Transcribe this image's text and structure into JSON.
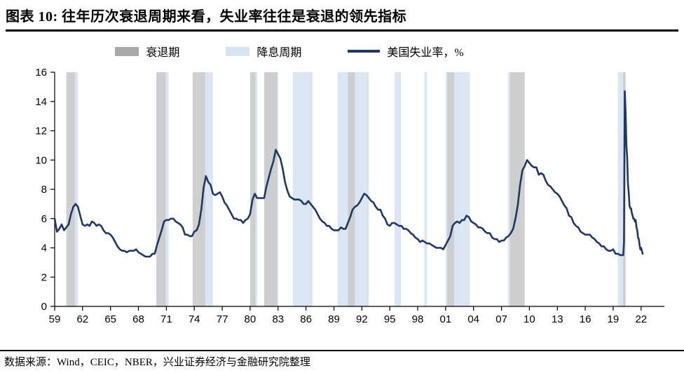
{
  "header": {
    "title": "图表 10: 往年历次衰退周期来看，失业率往往是衰退的领先指标"
  },
  "legend": [
    {
      "label": "衰退期"
    },
    {
      "label": "降息周期"
    },
    {
      "label": "美国失业率，%"
    }
  ],
  "footer": {
    "source": "数据来源：Wind，CEIC，NBER，兴业证券经济与金融研究院整理"
  },
  "colors": {
    "line": "#1f3864",
    "recession_band": "#cbcbcb",
    "cut_band": "#dce6f2",
    "legend_recession": "#a9a9a9",
    "legend_cut": "#d9e2f0",
    "axis": "#000000",
    "text": "#000000"
  },
  "chart_data": {
    "type": "line",
    "title": "图表 10: 往年历次衰退周期来看，失业率往往是衰退的领先指标",
    "grid": false,
    "x_axis": {
      "range": [
        1959,
        2024.5
      ],
      "ticks": [
        1959,
        1962,
        1965,
        1968,
        1971,
        1974,
        1977,
        1980,
        1983,
        1986,
        1989,
        1992,
        1995,
        1998,
        2001,
        2004,
        2007,
        2010,
        2013,
        2016,
        2019,
        2022
      ],
      "tick_labels": [
        "59",
        "62",
        "65",
        "68",
        "71",
        "74",
        "77",
        "80",
        "83",
        "86",
        "89",
        "92",
        "95",
        "98",
        "01",
        "04",
        "07",
        "10",
        "13",
        "16",
        "19",
        "22"
      ]
    },
    "y_axis": {
      "range": [
        0,
        16
      ],
      "ticks": [
        0,
        2,
        4,
        6,
        8,
        10,
        12,
        14,
        16
      ]
    },
    "recessions": [
      [
        1960.25,
        1961.17
      ],
      [
        1969.92,
        1970.92
      ],
      [
        1973.83,
        1975.17
      ],
      [
        1980.0,
        1980.58
      ],
      [
        1981.5,
        1982.92
      ],
      [
        1990.5,
        1991.25
      ],
      [
        2001.17,
        2001.92
      ],
      [
        2007.92,
        2009.5
      ],
      [
        2020.08,
        2020.33
      ]
    ],
    "rate_cut_cycles": [
      [
        1960.5,
        1961.5
      ],
      [
        1970.0,
        1971.25
      ],
      [
        1974.5,
        1976.0
      ],
      [
        1980.3,
        1980.75
      ],
      [
        1981.6,
        1983.0
      ],
      [
        1984.6,
        1986.7
      ],
      [
        1989.4,
        1992.75
      ],
      [
        1995.5,
        1996.2
      ],
      [
        1998.7,
        1999.0
      ],
      [
        2001.0,
        2003.6
      ],
      [
        2007.7,
        2008.95
      ],
      [
        2019.5,
        2020.3
      ]
    ],
    "series": [
      {
        "name": "美国失业率，%",
        "unit": "%",
        "frequency": "quarterly 1959-2019, monthly 2020-2022",
        "quarterly_start": 1959,
        "quarterly_values": [
          [
            6.0,
            5.1,
            5.3,
            5.6
          ],
          [
            5.2,
            5.4,
            5.6,
            6.3
          ],
          [
            6.8,
            7.0,
            6.8,
            6.2
          ],
          [
            5.6,
            5.5,
            5.6,
            5.5
          ],
          [
            5.8,
            5.7,
            5.5,
            5.6
          ],
          [
            5.5,
            5.2,
            5.0,
            5.0
          ],
          [
            4.9,
            4.7,
            4.4,
            4.1
          ],
          [
            3.9,
            3.8,
            3.8,
            3.7
          ],
          [
            3.8,
            3.8,
            3.8,
            3.9
          ],
          [
            3.7,
            3.6,
            3.5,
            3.4
          ],
          [
            3.4,
            3.4,
            3.6,
            3.6
          ],
          [
            4.2,
            4.7,
            5.2,
            5.8
          ],
          [
            5.9,
            5.9,
            6.0,
            6.0
          ],
          [
            5.8,
            5.7,
            5.6,
            5.4
          ],
          [
            4.9,
            4.9,
            4.8,
            4.8
          ],
          [
            5.1,
            5.2,
            5.6,
            6.6
          ],
          [
            8.1,
            8.9,
            8.5,
            8.3
          ],
          [
            7.7,
            7.6,
            7.7,
            7.8
          ],
          [
            7.5,
            7.1,
            6.9,
            6.6
          ],
          [
            6.3,
            6.0,
            6.0,
            5.9
          ],
          [
            5.9,
            5.7,
            5.9,
            6.0
          ],
          [
            6.3,
            7.3,
            7.7,
            7.4
          ],
          [
            7.4,
            7.4,
            7.4,
            8.2
          ],
          [
            8.8,
            9.4,
            9.9,
            10.7
          ],
          [
            10.4,
            10.1,
            9.4,
            8.5
          ],
          [
            7.9,
            7.5,
            7.4,
            7.3
          ],
          [
            7.3,
            7.3,
            7.2,
            7.0
          ],
          [
            7.0,
            7.2,
            7.0,
            6.8
          ],
          [
            6.6,
            6.3,
            6.0,
            5.8
          ],
          [
            5.7,
            5.5,
            5.5,
            5.3
          ],
          [
            5.2,
            5.2,
            5.2,
            5.4
          ],
          [
            5.3,
            5.3,
            5.7,
            6.1
          ],
          [
            6.6,
            6.8,
            6.9,
            7.1
          ],
          [
            7.4,
            7.7,
            7.6,
            7.4
          ],
          [
            7.2,
            7.1,
            6.8,
            6.6
          ],
          [
            6.6,
            6.2,
            6.0,
            5.6
          ],
          [
            5.5,
            5.7,
            5.7,
            5.6
          ],
          [
            5.5,
            5.5,
            5.3,
            5.3
          ],
          [
            5.2,
            5.0,
            4.9,
            4.7
          ],
          [
            4.6,
            4.4,
            4.5,
            4.4
          ],
          [
            4.3,
            4.3,
            4.2,
            4.1
          ],
          [
            4.0,
            4.0,
            4.0,
            3.9
          ],
          [
            4.2,
            4.5,
            4.8,
            5.5
          ],
          [
            5.7,
            5.8,
            5.7,
            5.9
          ],
          [
            5.9,
            6.2,
            6.1,
            5.8
          ],
          [
            5.7,
            5.6,
            5.4,
            5.4
          ],
          [
            5.3,
            5.1,
            5.0,
            5.0
          ],
          [
            4.7,
            4.6,
            4.6,
            4.4
          ],
          [
            4.5,
            4.5,
            4.7,
            4.8
          ],
          [
            5.0,
            5.3,
            6.0,
            6.9
          ],
          [
            8.3,
            9.3,
            9.6,
            10.0
          ],
          [
            9.8,
            9.6,
            9.5,
            9.5
          ],
          [
            9.0,
            9.1,
            9.0,
            8.6
          ],
          [
            8.3,
            8.2,
            8.0,
            7.8
          ],
          [
            7.7,
            7.5,
            7.2,
            6.9
          ],
          [
            6.7,
            6.2,
            6.1,
            5.7
          ],
          [
            5.5,
            5.4,
            5.1,
            5.0
          ],
          [
            4.9,
            4.9,
            4.9,
            4.7
          ],
          [
            4.6,
            4.4,
            4.3,
            4.1
          ],
          [
            4.1,
            3.9,
            3.8,
            3.8
          ],
          [
            3.9,
            3.6,
            3.6,
            3.5
          ]
        ],
        "monthly_tail_start": 2020,
        "monthly_tail_values": [
          3.5,
          3.5,
          4.4,
          14.7,
          13.2,
          11.0,
          10.2,
          8.4,
          7.8,
          6.9,
          6.7,
          6.7,
          6.4,
          6.2,
          6.0,
          6.0,
          5.8,
          5.9,
          5.4,
          5.2,
          4.7,
          4.6,
          4.2,
          3.9,
          4.0,
          3.8,
          3.6
        ]
      }
    ]
  }
}
